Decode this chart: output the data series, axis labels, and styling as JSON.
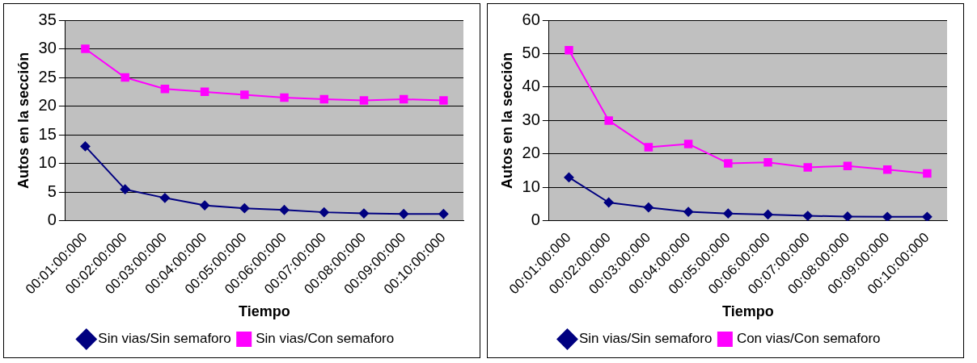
{
  "chart_data": [
    {
      "type": "line",
      "xlabel": "Tiempo",
      "ylabel": "Autos en la sección",
      "categories": [
        "00:01:00:000",
        "00:02:00:000",
        "00:03:00:000",
        "00:04:00:000",
        "00:05:00:000",
        "00:06:00:000",
        "00:07:00:000",
        "00:08:00:000",
        "00:09:00:000",
        "00:10:00:000"
      ],
      "series": [
        {
          "name": "Sin vias/Sin semaforo",
          "color": "#000080",
          "marker": "diamond",
          "values": [
            13,
            5.5,
            4,
            2.7,
            2.2,
            1.9,
            1.5,
            1.3,
            1.2,
            1.2
          ]
        },
        {
          "name": "Sin vias/Con semaforo",
          "color": "#ff00ff",
          "marker": "square",
          "values": [
            30,
            25,
            23,
            22.5,
            22,
            21.5,
            21.2,
            21,
            21.2,
            21
          ]
        }
      ],
      "ylim": [
        0,
        35
      ],
      "yticks": [
        0,
        5,
        10,
        15,
        20,
        25,
        30,
        35
      ],
      "grid": "y",
      "legend": "bottom"
    },
    {
      "type": "line",
      "xlabel": "Tiempo",
      "ylabel": "Autos en la sección",
      "categories": [
        "00:01:00:000",
        "00:02:00:000",
        "00:03:00:000",
        "00:04:00:000",
        "00:05:00:000",
        "00:06:00:000",
        "00:07:00:000",
        "00:08:00:000",
        "00:09:00:000",
        "00:10:00:000"
      ],
      "series": [
        {
          "name": "Sin vias/Sin semaforo",
          "color": "#000080",
          "marker": "diamond",
          "values": [
            13,
            5.5,
            4,
            2.7,
            2.2,
            1.9,
            1.5,
            1.3,
            1.2,
            1.2
          ]
        },
        {
          "name": "Con vias/Con semaforo",
          "color": "#ff00ff",
          "marker": "square",
          "values": [
            51,
            30,
            22,
            23,
            17.2,
            17.5,
            16,
            16.4,
            15.3,
            14.2
          ]
        }
      ],
      "ylim": [
        0,
        60
      ],
      "yticks": [
        0,
        10,
        20,
        30,
        40,
        50,
        60
      ],
      "grid": "y",
      "legend": "bottom"
    }
  ]
}
